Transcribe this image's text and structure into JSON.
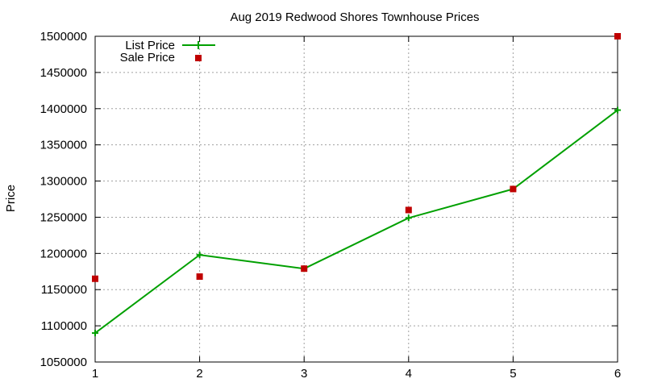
{
  "chart_data": {
    "type": "line",
    "title": "Aug 2019 Redwood Shores Townhouse Prices",
    "xlabel": "",
    "ylabel": "Price",
    "x": [
      1,
      2,
      3,
      4,
      5,
      6
    ],
    "xlim": [
      1,
      6
    ],
    "ylim": [
      1050000,
      1500000
    ],
    "xticks": [
      1,
      2,
      3,
      4,
      5,
      6
    ],
    "yticks": [
      1050000,
      1100000,
      1150000,
      1200000,
      1250000,
      1300000,
      1350000,
      1400000,
      1450000,
      1500000
    ],
    "grid": true,
    "legend_position": "top-left",
    "series": [
      {
        "name": "List Price",
        "style": "line-with-plus-markers",
        "color": "#00a000",
        "values": [
          1090000,
          1198000,
          1179000,
          1249000,
          1289000,
          1398000
        ]
      },
      {
        "name": "Sale Price",
        "style": "square-markers",
        "color": "#c00000",
        "values": [
          1165000,
          1168000,
          1179000,
          1260000,
          1289000,
          1500000
        ]
      }
    ]
  }
}
